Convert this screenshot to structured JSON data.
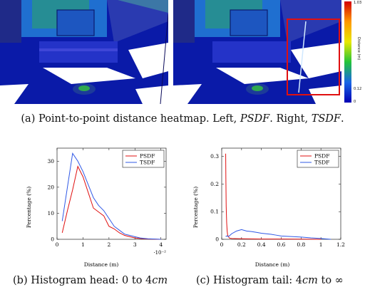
{
  "captions": {
    "a_prefix": "(a) Point-to-point distance heatmap. Left, ",
    "a_psdf": "PSDF",
    "a_mid": ". Right, ",
    "a_tsdf": "TSDF",
    "a_end": ".",
    "b": "(b) Histogram head: 0 to 4",
    "b_unit": "cm",
    "c_prefix": "(c) Histogram tail: 4",
    "c_unit": "cm",
    "c_suffix": " to ∞"
  },
  "colorbar": {
    "label": "Distance (m)",
    "top_tick": "1.03",
    "mid_tick": "0.12",
    "bottom_tick": "0",
    "colors": [
      "#d40000",
      "#ff9800",
      "#e8e800",
      "#22c43a",
      "#1a66e6",
      "#0000b4"
    ]
  },
  "highlight_color": "#e01010",
  "chart_data": [
    {
      "type": "line",
      "xlabel": "Distance (m)",
      "ylabel": "Percentage (%)",
      "x_multiplier": "·10⁻²",
      "xlim": [
        0,
        4.2
      ],
      "ylim": [
        0,
        35
      ],
      "xticks": [
        0,
        1,
        2,
        3,
        4
      ],
      "yticks": [
        0,
        10,
        20,
        30
      ],
      "legend_position": "top-right",
      "series": [
        {
          "name": "PSDF",
          "color": "#e01010",
          "x": [
            0.2,
            0.4,
            0.6,
            0.8,
            1.0,
            1.2,
            1.4,
            1.6,
            1.8,
            2.0,
            2.2,
            2.4,
            2.6,
            2.8,
            3.0,
            3.2,
            3.5,
            4.0
          ],
          "y": [
            2.5,
            11,
            19,
            28,
            24,
            18,
            12,
            10.5,
            9,
            5,
            4,
            2.5,
            1.5,
            1,
            0.5,
            0.3,
            0.1,
            0
          ]
        },
        {
          "name": "TSDF",
          "color": "#2f58e6",
          "x": [
            0.2,
            0.4,
            0.6,
            0.8,
            1.0,
            1.2,
            1.4,
            1.6,
            1.8,
            2.0,
            2.2,
            2.4,
            2.6,
            2.8,
            3.0,
            3.2,
            3.5,
            4.0
          ],
          "y": [
            7,
            20,
            33,
            30,
            26,
            21,
            16,
            13,
            11,
            8,
            5,
            3.5,
            2,
            1.5,
            1,
            0.5,
            0.2,
            0
          ]
        }
      ]
    },
    {
      "type": "line",
      "xlabel": "Distance (m)",
      "ylabel": "Percentage (%)",
      "xlim": [
        0,
        1.2
      ],
      "ylim": [
        0,
        0.33
      ],
      "xticks": [
        0,
        0.2,
        0.4,
        0.6,
        0.8,
        1,
        1.2
      ],
      "yticks": [
        0,
        0.1,
        0.2,
        0.3
      ],
      "legend_position": "top-right",
      "series": [
        {
          "name": "PSDF",
          "color": "#e01010",
          "x": [
            0.04,
            0.042,
            0.045,
            0.05,
            0.055,
            0.06,
            0.07,
            0.08,
            0.1,
            0.2,
            0.4,
            0.6,
            0.8,
            1.0
          ],
          "y": [
            0.31,
            0.22,
            0.12,
            0.06,
            0.03,
            0.015,
            0.008,
            0.004,
            0.003,
            0.002,
            0.001,
            0.001,
            0.0005,
            0
          ]
        },
        {
          "name": "TSDF",
          "color": "#2f58e6",
          "x": [
            0.04,
            0.05,
            0.07,
            0.1,
            0.15,
            0.2,
            0.25,
            0.3,
            0.35,
            0.4,
            0.45,
            0.5,
            0.55,
            0.6,
            0.7,
            0.8,
            0.9,
            1.0,
            1.1
          ],
          "y": [
            0.01,
            0.012,
            0.01,
            0.02,
            0.03,
            0.035,
            0.03,
            0.028,
            0.025,
            0.022,
            0.02,
            0.018,
            0.015,
            0.012,
            0.01,
            0.008,
            0.005,
            0.003,
            0
          ]
        }
      ]
    }
  ]
}
